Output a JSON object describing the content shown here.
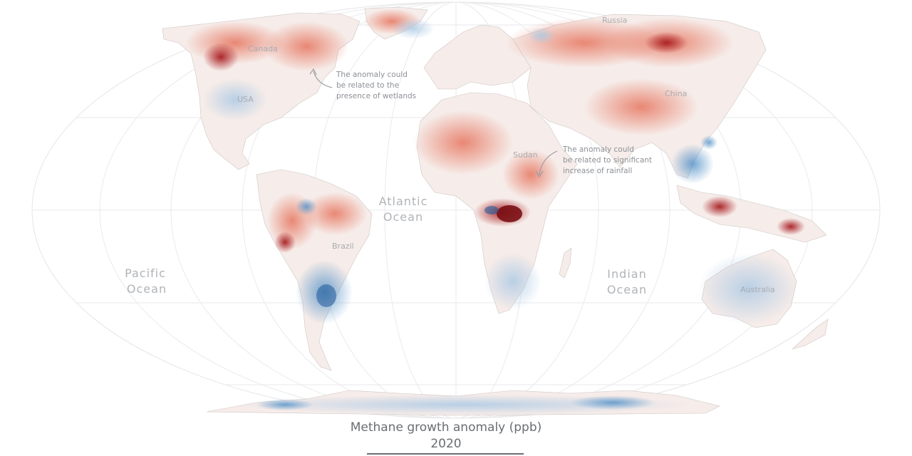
{
  "colors": {
    "positive": "#e4664d",
    "strong_positive": "#a81e22",
    "negative": "#4f8fc7",
    "strong_negative": "#1f5a99",
    "land_neutral": "#f6ece9",
    "graticule": "#e4e5e7",
    "border": "#b9b3b1"
  },
  "map": {
    "countries": [
      "Canada",
      "USA",
      "Russia",
      "China",
      "Sudan",
      "Brazil",
      "Australia"
    ],
    "oceans": [
      {
        "line1": "Atlantic",
        "line2": "Ocean"
      },
      {
        "line1": "Pacific",
        "line2": "Ocean"
      },
      {
        "line1": "Indian",
        "line2": "Ocean"
      }
    ],
    "annotations": [
      {
        "lines": [
          "The anomaly could",
          "be related to the",
          "presence of wetlands"
        ]
      },
      {
        "lines": [
          "The anomaly could",
          "be related to significant",
          "increase of rainfall"
        ]
      }
    ]
  },
  "caption": {
    "title": "Methane growth anomaly (ppb)",
    "year": "2020"
  }
}
